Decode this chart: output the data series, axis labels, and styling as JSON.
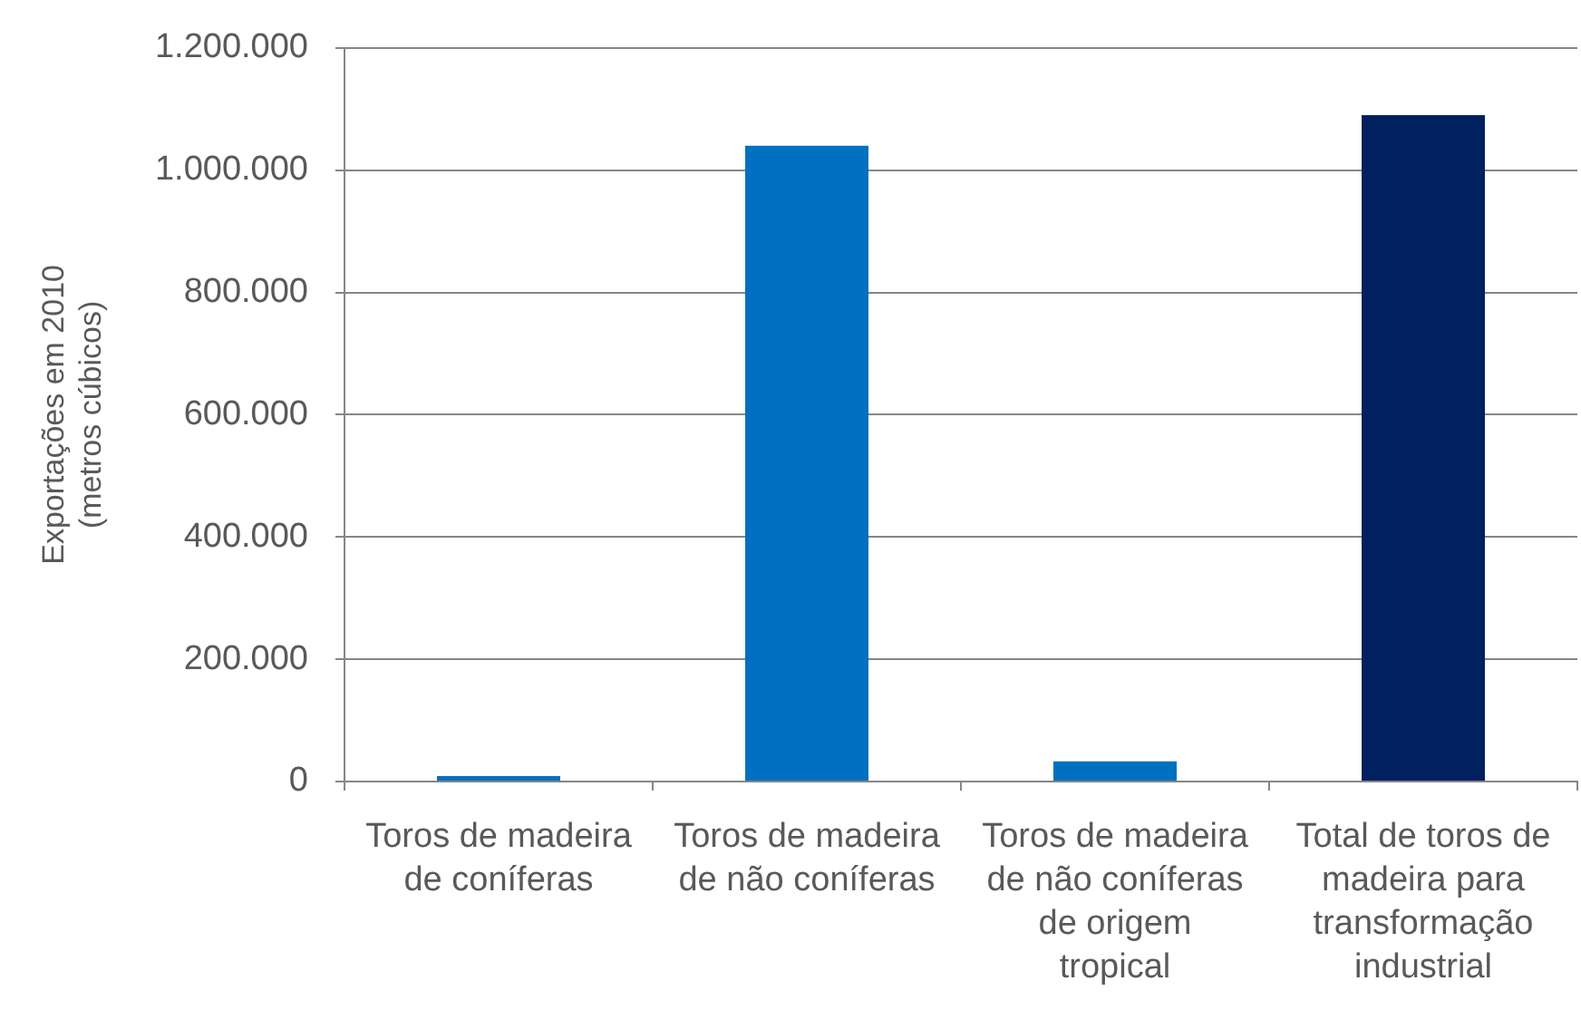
{
  "chart_data": {
    "type": "bar",
    "ylabel": "Exportações em 2010 (metros cúbicos)",
    "categories": [
      "Toros de madeira de coníferas",
      "Toros de madeira de não coníferas",
      "Toros de madeira de não coníferas de origem tropical",
      "Total de toros de madeira para transformação industrial"
    ],
    "values": [
      9000,
      1040000,
      33000,
      1090000
    ],
    "colors": [
      "#0070c0",
      "#0070c0",
      "#0070c0",
      "#002060"
    ],
    "ylim": [
      0,
      1200000
    ],
    "yticks": [
      0,
      {
        "value": 200000,
        "label": "200.000"
      },
      {
        "value": 400000,
        "label": "400.000"
      },
      {
        "value": 600000,
        "label": "600.000"
      },
      {
        "value": 800000,
        "label": "800.000"
      },
      {
        "value": 1000000,
        "label": "1.000.000"
      },
      {
        "value": 1200000,
        "label": "1.200.000"
      }
    ],
    "grid": "y"
  }
}
